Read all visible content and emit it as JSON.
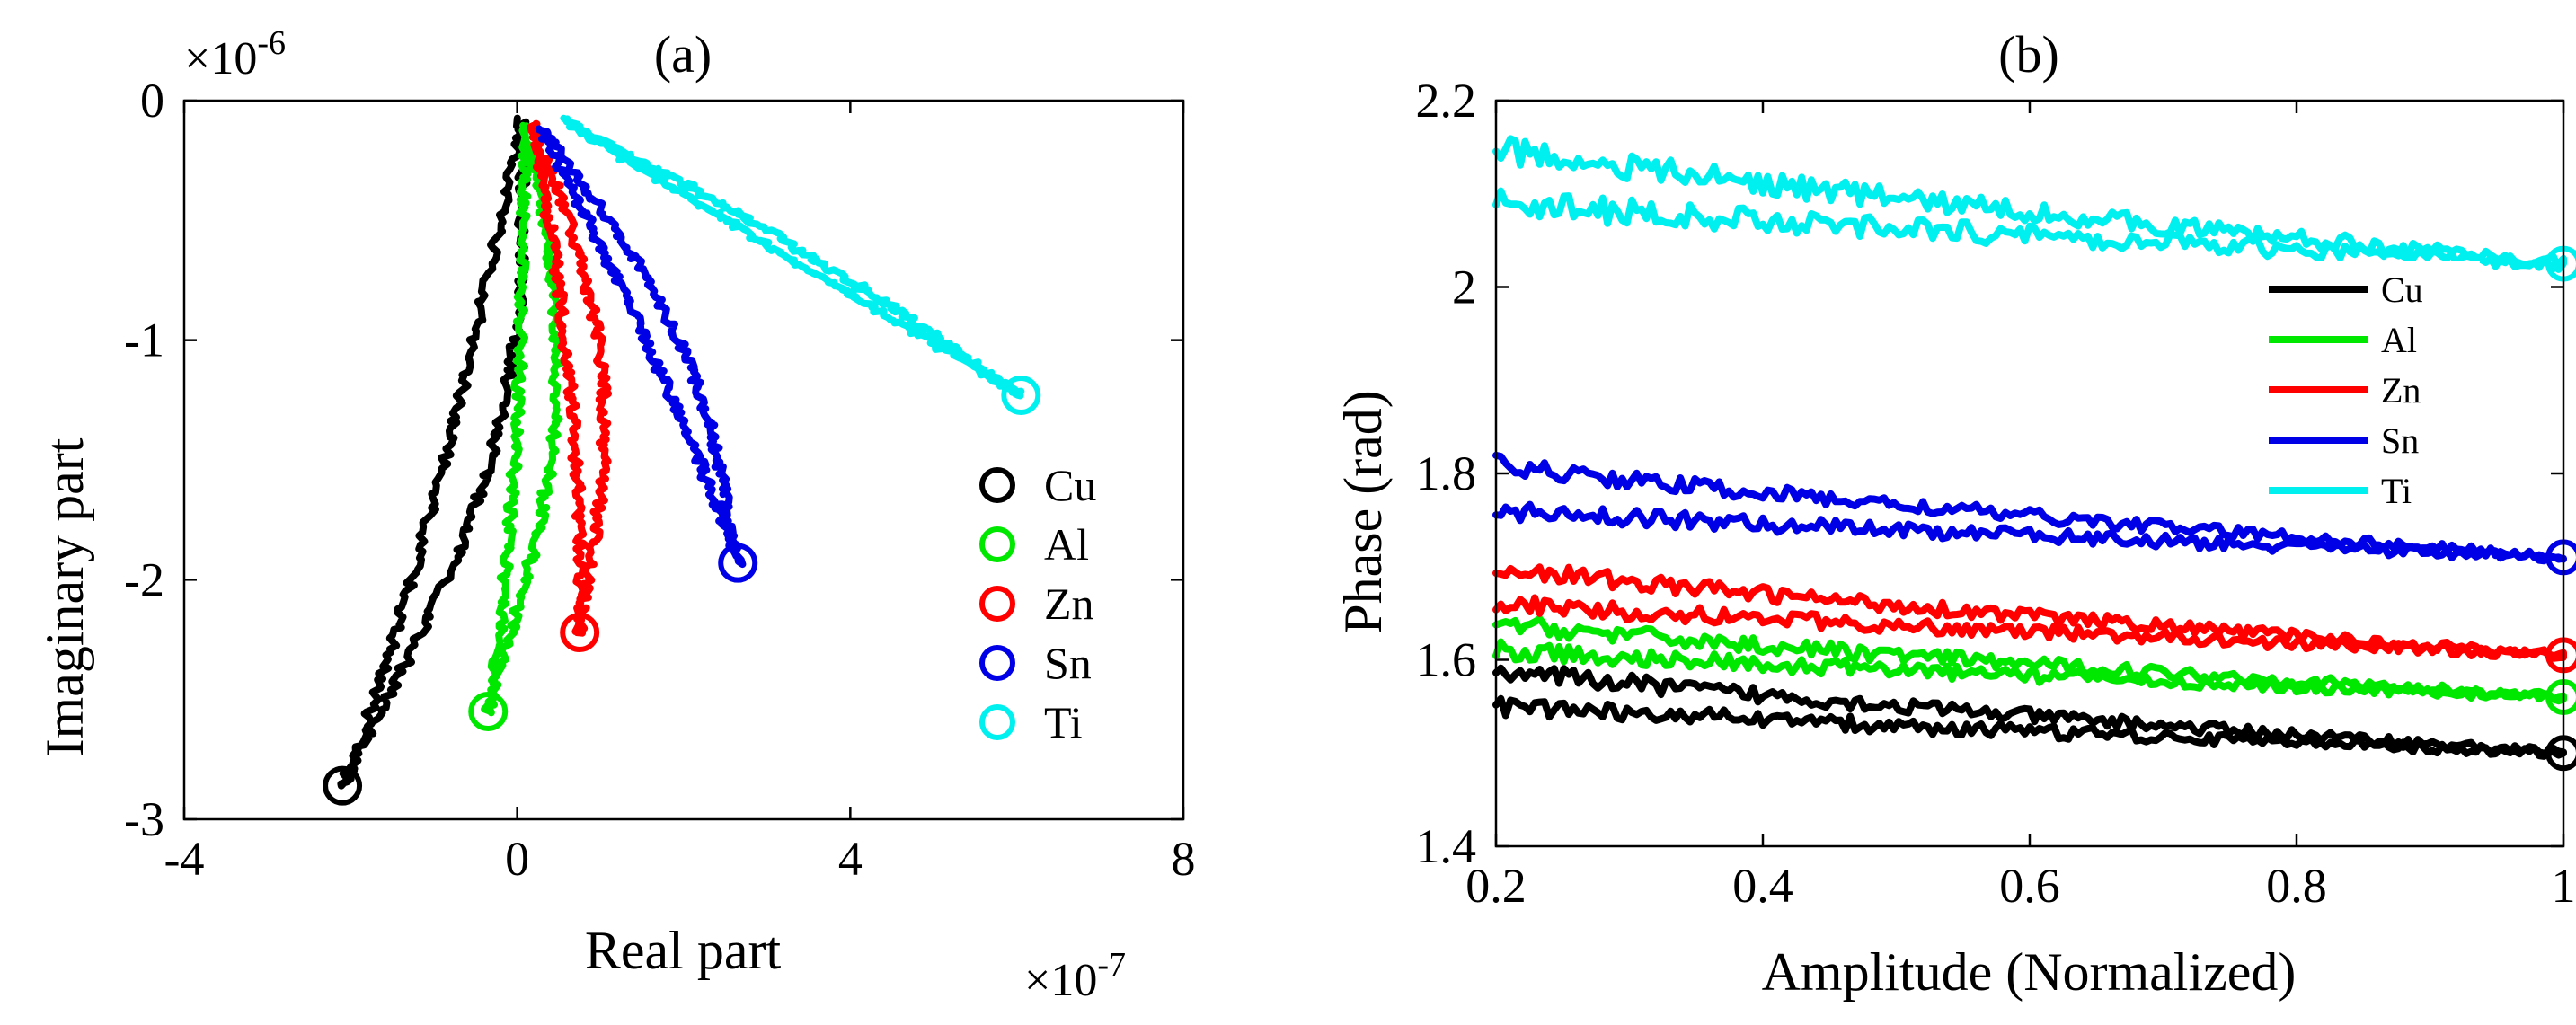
{
  "colors": {
    "Cu": "#000000",
    "Al": "#00e800",
    "Zn": "#ff0000",
    "Sn": "#0000e6",
    "Ti": "#00f0f0"
  },
  "chart_data": [
    {
      "id": "a",
      "type": "line",
      "title": "(a)",
      "xlabel": "Real part",
      "ylabel": "Imaginary part",
      "x_multiplier": "×10",
      "x_multiplier_exp": "-7",
      "y_multiplier": "×10",
      "y_multiplier_exp": "-6",
      "xlim": [
        -4,
        8
      ],
      "ylim": [
        -3,
        0
      ],
      "xticks": [
        -4,
        0,
        4,
        8
      ],
      "xtick_labels": [
        "-4",
        "0",
        "4",
        "8"
      ],
      "yticks": [
        0,
        -1,
        -2,
        -3
      ],
      "ytick_labels": [
        "0",
        "-1",
        "-2",
        "-3"
      ],
      "legend": {
        "position": "right",
        "marker": "circle",
        "entries": [
          "Cu",
          "Al",
          "Zn",
          "Sn",
          "Ti"
        ]
      },
      "series": [
        {
          "name": "Cu",
          "start": [
            0.05,
            -0.08
          ],
          "end": [
            -2.1,
            -2.86
          ],
          "loop_width": 0.55,
          "bow": 0.45
        },
        {
          "name": "Al",
          "start": [
            0.1,
            -0.1
          ],
          "end": [
            -0.35,
            -2.55
          ],
          "loop_width": 0.45,
          "bow": 0.35
        },
        {
          "name": "Zn",
          "start": [
            0.2,
            -0.1
          ],
          "end": [
            0.75,
            -2.22
          ],
          "loop_width": 0.4,
          "bow": 0.35
        },
        {
          "name": "Sn",
          "start": [
            0.3,
            -0.12
          ],
          "end": [
            2.65,
            -1.93
          ],
          "loop_width": 0.4,
          "bow": 0.3
        },
        {
          "name": "Ti",
          "start": [
            0.55,
            -0.08
          ],
          "end": [
            6.05,
            -1.23
          ],
          "loop_width": 0.3,
          "bow": 0.1
        }
      ]
    },
    {
      "id": "b",
      "type": "line",
      "title": "(b)",
      "xlabel": "Amplitude (Normalized)",
      "ylabel": "Phase (rad)",
      "xlim": [
        0.2,
        1
      ],
      "ylim": [
        1.4,
        2.2
      ],
      "xticks": [
        0.2,
        0.4,
        0.6,
        0.8,
        1
      ],
      "xtick_labels": [
        "0.2",
        "0.4",
        "0.6",
        "0.8",
        "1"
      ],
      "yticks": [
        1.4,
        1.6,
        1.8,
        2,
        2.2
      ],
      "ytick_labels": [
        "1.4",
        "1.6",
        "1.8",
        "2",
        "2.2"
      ],
      "legend": {
        "position": "right",
        "marker": "line",
        "entries": [
          "Cu",
          "Al",
          "Zn",
          "Sn",
          "Ti"
        ]
      },
      "series": [
        {
          "name": "Cu",
          "upper_start": 1.59,
          "lower_start": 1.55,
          "end": 1.5
        },
        {
          "name": "Al",
          "upper_start": 1.64,
          "lower_start": 1.61,
          "end": 1.56
        },
        {
          "name": "Zn",
          "upper_start": 1.7,
          "lower_start": 1.66,
          "end": 1.605
        },
        {
          "name": "Sn",
          "upper_start": 1.81,
          "lower_start": 1.76,
          "end": 1.71
        },
        {
          "name": "Ti",
          "upper_start": 2.15,
          "lower_start": 2.09,
          "end": 2.025
        }
      ]
    }
  ]
}
